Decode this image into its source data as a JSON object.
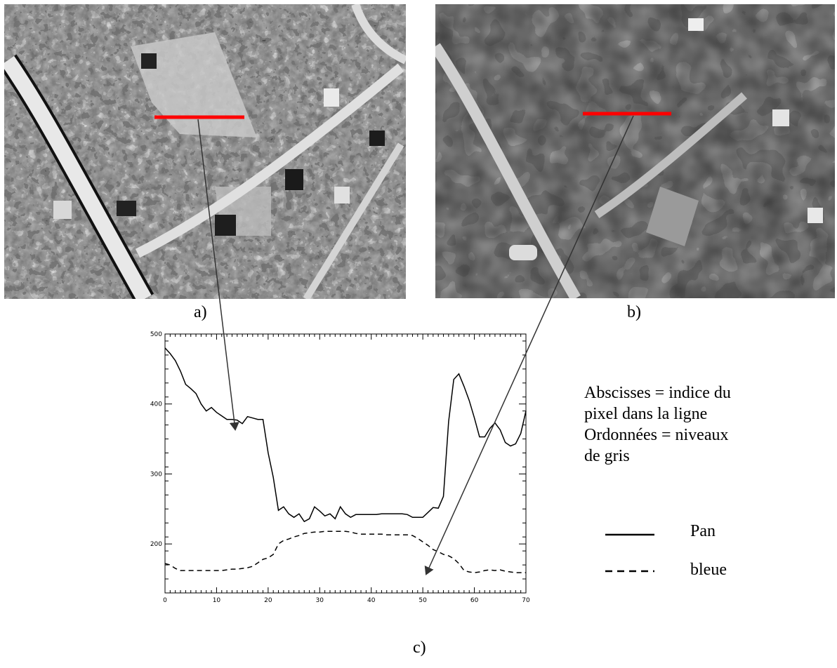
{
  "captions": {
    "a": "a)",
    "b": "b)",
    "c": "c)"
  },
  "description_lines": [
    "Abscisses = indice du",
    "pixel dans la ligne",
    "Ordonnées = niveaux",
    "de gris"
  ],
  "legend": [
    {
      "label": "Pan",
      "style": "solid"
    },
    {
      "label": "bleue",
      "style": "dashed"
    }
  ],
  "colors": {
    "profile_line": "#ff0000",
    "axis": "#000000"
  },
  "chart_data": {
    "type": "line",
    "xlim": [
      0,
      70
    ],
    "ylim": [
      130,
      500
    ],
    "x_ticks": [
      0,
      10,
      20,
      30,
      40,
      50,
      60,
      70
    ],
    "y_ticks": [
      200,
      300,
      400,
      500
    ],
    "series": [
      {
        "name": "Pan",
        "style": "solid",
        "points": [
          [
            0,
            480
          ],
          [
            1,
            472
          ],
          [
            2,
            462
          ],
          [
            3,
            447
          ],
          [
            4,
            428
          ],
          [
            5,
            422
          ],
          [
            6,
            415
          ],
          [
            7,
            400
          ],
          [
            8,
            390
          ],
          [
            9,
            395
          ],
          [
            10,
            388
          ],
          [
            11,
            383
          ],
          [
            12,
            378
          ],
          [
            13,
            378
          ],
          [
            14,
            377
          ],
          [
            15,
            372
          ],
          [
            16,
            382
          ],
          [
            17,
            380
          ],
          [
            18,
            378
          ],
          [
            19,
            378
          ],
          [
            20,
            330
          ],
          [
            21,
            295
          ],
          [
            22,
            248
          ],
          [
            23,
            253
          ],
          [
            24,
            243
          ],
          [
            25,
            238
          ],
          [
            26,
            243
          ],
          [
            27,
            232
          ],
          [
            28,
            236
          ],
          [
            29,
            253
          ],
          [
            30,
            247
          ],
          [
            31,
            240
          ],
          [
            32,
            243
          ],
          [
            33,
            236
          ],
          [
            34,
            253
          ],
          [
            35,
            243
          ],
          [
            36,
            238
          ],
          [
            37,
            242
          ],
          [
            38,
            242
          ],
          [
            39,
            242
          ],
          [
            40,
            242
          ],
          [
            41,
            242
          ],
          [
            42,
            243
          ],
          [
            43,
            243
          ],
          [
            44,
            243
          ],
          [
            45,
            243
          ],
          [
            46,
            243
          ],
          [
            47,
            242
          ],
          [
            48,
            238
          ],
          [
            49,
            238
          ],
          [
            50,
            238
          ],
          [
            51,
            245
          ],
          [
            52,
            252
          ],
          [
            53,
            251
          ],
          [
            54,
            268
          ],
          [
            55,
            375
          ],
          [
            56,
            435
          ],
          [
            57,
            443
          ],
          [
            58,
            425
          ],
          [
            59,
            405
          ],
          [
            60,
            380
          ],
          [
            61,
            353
          ],
          [
            62,
            353
          ],
          [
            63,
            365
          ],
          [
            64,
            373
          ],
          [
            65,
            363
          ],
          [
            66,
            345
          ],
          [
            67,
            340
          ],
          [
            68,
            343
          ],
          [
            69,
            358
          ],
          [
            70,
            390
          ]
        ]
      },
      {
        "name": "bleue",
        "style": "dashed",
        "points": [
          [
            0,
            172
          ],
          [
            1,
            170
          ],
          [
            2,
            165
          ],
          [
            3,
            162
          ],
          [
            4,
            162
          ],
          [
            5,
            162
          ],
          [
            6,
            162
          ],
          [
            7,
            162
          ],
          [
            8,
            162
          ],
          [
            9,
            162
          ],
          [
            10,
            162
          ],
          [
            11,
            162
          ],
          [
            12,
            163
          ],
          [
            13,
            164
          ],
          [
            14,
            164
          ],
          [
            15,
            165
          ],
          [
            16,
            166
          ],
          [
            17,
            168
          ],
          [
            18,
            173
          ],
          [
            19,
            178
          ],
          [
            20,
            180
          ],
          [
            21,
            185
          ],
          [
            22,
            200
          ],
          [
            23,
            205
          ],
          [
            24,
            207
          ],
          [
            25,
            210
          ],
          [
            26,
            212
          ],
          [
            27,
            215
          ],
          [
            28,
            216
          ],
          [
            29,
            217
          ],
          [
            30,
            217
          ],
          [
            31,
            218
          ],
          [
            32,
            218
          ],
          [
            33,
            218
          ],
          [
            34,
            218
          ],
          [
            35,
            218
          ],
          [
            36,
            217
          ],
          [
            37,
            215
          ],
          [
            38,
            214
          ],
          [
            39,
            214
          ],
          [
            40,
            214
          ],
          [
            41,
            214
          ],
          [
            42,
            214
          ],
          [
            43,
            213
          ],
          [
            44,
            213
          ],
          [
            45,
            213
          ],
          [
            46,
            213
          ],
          [
            47,
            213
          ],
          [
            48,
            212
          ],
          [
            49,
            208
          ],
          [
            50,
            203
          ],
          [
            51,
            198
          ],
          [
            52,
            192
          ],
          [
            53,
            189
          ],
          [
            54,
            185
          ],
          [
            55,
            183
          ],
          [
            56,
            179
          ],
          [
            57,
            172
          ],
          [
            58,
            162
          ],
          [
            59,
            160
          ],
          [
            60,
            159
          ],
          [
            61,
            160
          ],
          [
            62,
            162
          ],
          [
            63,
            163
          ],
          [
            64,
            162
          ],
          [
            65,
            163
          ],
          [
            66,
            161
          ],
          [
            67,
            160
          ],
          [
            68,
            159
          ],
          [
            69,
            159
          ],
          [
            70,
            159
          ]
        ]
      }
    ]
  }
}
